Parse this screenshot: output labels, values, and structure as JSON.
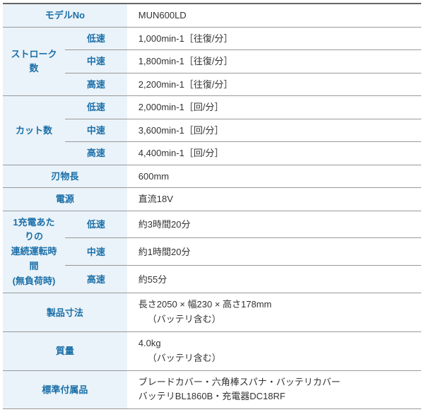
{
  "colors": {
    "label_bg": "#eaf3f9",
    "label_fg": "#1b6fa8",
    "value_bg": "#ffffff",
    "value_fg": "#333333",
    "border": "#999999",
    "top_border": "#666666"
  },
  "col_widths": {
    "label": 155,
    "sub": 70,
    "value": 367
  },
  "fontsize": 13,
  "rows": {
    "model_label": "モデルNo",
    "model_value": "MUN600LD",
    "stroke_label": "ストローク数",
    "stroke_low_label": "低速",
    "stroke_low_value": "1,000min-1［往復/分］",
    "stroke_mid_label": "中速",
    "stroke_mid_value": "1,800min-1［往復/分］",
    "stroke_high_label": "高速",
    "stroke_high_value": "2,200min-1［往復/分］",
    "cut_label": "カット数",
    "cut_low_label": "低速",
    "cut_low_value": "2,000min-1［回/分］",
    "cut_mid_label": "中速",
    "cut_mid_value": "3,600min-1［回/分］",
    "cut_high_label": "高速",
    "cut_high_value": "4,400min-1［回/分］",
    "blade_label": "刃物長",
    "blade_value": "600mm",
    "power_label": "電源",
    "power_value": "直流18V",
    "runtime_label_l1": "1充電あたりの",
    "runtime_label_l2": "連続運転時間",
    "runtime_label_l3": "(無負荷時)",
    "runtime_low_label": "低速",
    "runtime_low_value": "約3時間20分",
    "runtime_mid_label": "中速",
    "runtime_mid_value": "約1時間20分",
    "runtime_high_label": "高速",
    "runtime_high_value": "約55分",
    "dims_label": "製品寸法",
    "dims_value_l1": "長さ2050 × 幅230 × 高さ178mm",
    "dims_value_l2": "（バッテリ含む）",
    "mass_label": "質量",
    "mass_value_l1": "4.0kg",
    "mass_value_l2": "（バッテリ含む）",
    "acc_label": "標準付属品",
    "acc_value_l1": "ブレードカバー・六角棒スパナ・バッテリカバー",
    "acc_value_l2": "バッテリBL1860B・充電器DC18RF"
  }
}
